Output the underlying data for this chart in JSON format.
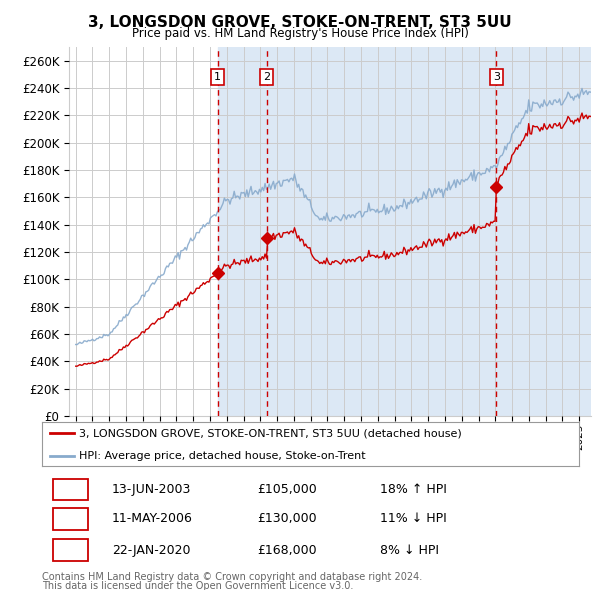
{
  "title": "3, LONGSDON GROVE, STOKE-ON-TRENT, ST3 5UU",
  "subtitle": "Price paid vs. HM Land Registry's House Price Index (HPI)",
  "ylim": [
    0,
    270000
  ],
  "yticks": [
    0,
    20000,
    40000,
    60000,
    80000,
    100000,
    120000,
    140000,
    160000,
    180000,
    200000,
    220000,
    240000,
    260000
  ],
  "ytick_labels": [
    "£0",
    "£20K",
    "£40K",
    "£60K",
    "£80K",
    "£100K",
    "£120K",
    "£140K",
    "£160K",
    "£180K",
    "£200K",
    "£220K",
    "£240K",
    "£260K"
  ],
  "xlim_start": 1994.6,
  "xlim_end": 2025.7,
  "sale1_year": 2003.45,
  "sale1_price": 105000,
  "sale1_label": "1",
  "sale1_date": "13-JUN-2003",
  "sale1_amount": "£105,000",
  "sale1_hpi": "18% ↑ HPI",
  "sale2_year": 2006.37,
  "sale2_price": 130000,
  "sale2_label": "2",
  "sale2_date": "11-MAY-2006",
  "sale2_amount": "£130,000",
  "sale2_hpi": "11% ↓ HPI",
  "sale3_year": 2020.06,
  "sale3_price": 168000,
  "sale3_label": "3",
  "sale3_date": "22-JAN-2020",
  "sale3_amount": "£168,000",
  "sale3_hpi": "8% ↓ HPI",
  "line_color_property": "#cc0000",
  "line_color_hpi": "#88aacc",
  "shade_color": "#dce8f5",
  "vline_color": "#cc0000",
  "grid_color": "#cccccc",
  "background_color": "#ffffff",
  "legend_label_property": "3, LONGSDON GROVE, STOKE-ON-TRENT, ST3 5UU (detached house)",
  "legend_label_hpi": "HPI: Average price, detached house, Stoke-on-Trent",
  "footer1": "Contains HM Land Registry data © Crown copyright and database right 2024.",
  "footer2": "This data is licensed under the Open Government Licence v3.0."
}
